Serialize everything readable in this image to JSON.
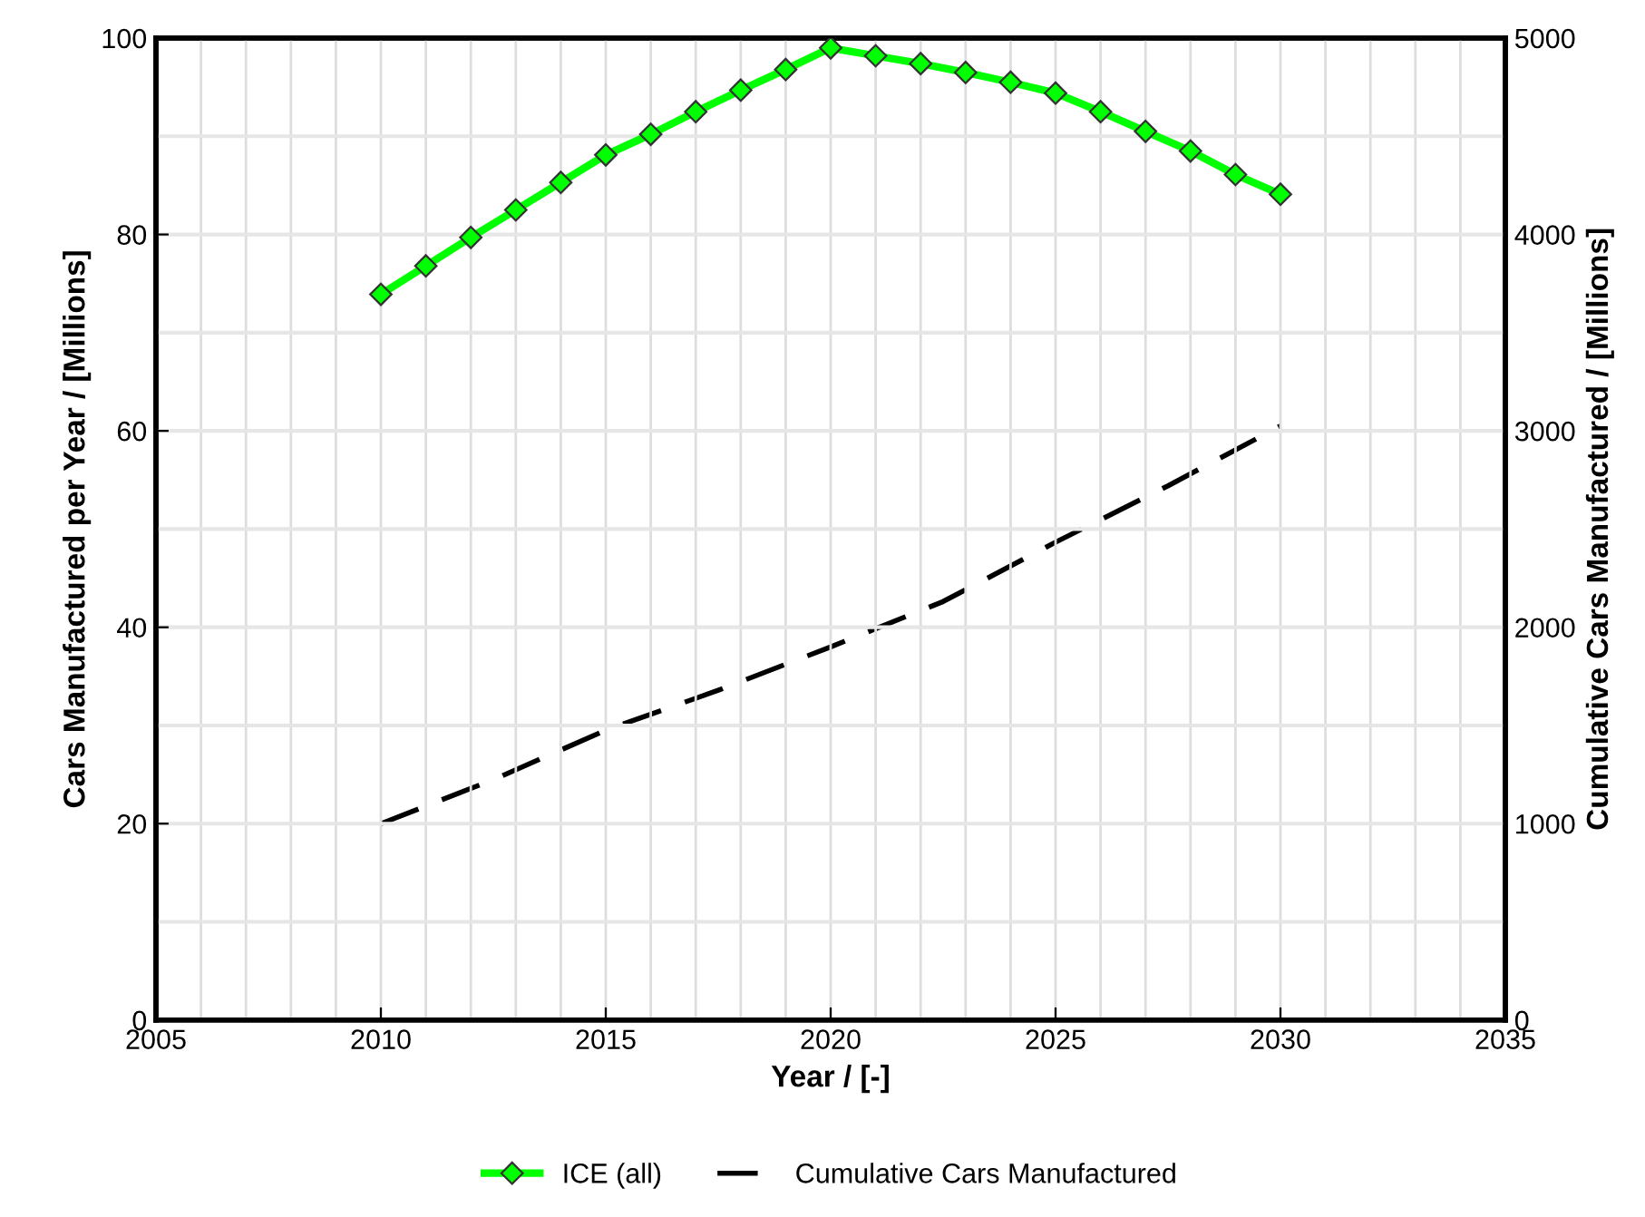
{
  "chart_data": {
    "type": "line",
    "xlabel": "Year / [-]",
    "ylabel": "Cars Manufactured per Year / [Millions]",
    "y2label": "Cumulative Cars Manufactured / [Millions]",
    "xlim": [
      2005,
      2035
    ],
    "xticks": [
      2005,
      2010,
      2015,
      2020,
      2025,
      2030,
      2035
    ],
    "ylim": [
      0,
      100
    ],
    "yticks": [
      0,
      20,
      40,
      60,
      80,
      100
    ],
    "y2lim": [
      0,
      5000
    ],
    "y2ticks": [
      0,
      1000,
      2000,
      3000,
      4000,
      5000
    ],
    "grid": true,
    "legend": "bottom",
    "series": [
      {
        "name": "ICE (all)",
        "color": "#00ff00",
        "marker": "diamond",
        "line_style": "solid",
        "x": [
          2010,
          2011,
          2012,
          2013,
          2014,
          2015,
          2016,
          2017,
          2018,
          2019,
          2020,
          2021,
          2022,
          2023,
          2024,
          2025,
          2026,
          2027,
          2028,
          2029,
          2030
        ],
        "values": [
          73.9,
          76.8,
          79.7,
          82.5,
          85.3,
          88.1,
          90.2,
          92.5,
          94.7,
          96.8,
          99.0,
          98.2,
          97.4,
          96.5,
          95.5,
          94.4,
          92.5,
          90.5,
          88.5,
          86.1,
          84.1
        ]
      },
      {
        "name": "Cumulative Cars Manufactured",
        "color": "#000000",
        "marker": "none",
        "line_style": "dashed",
        "axis": "y2",
        "x": [
          2010,
          2012.5,
          2015,
          2017.5,
          2020,
          2022.5,
          2025,
          2027.5,
          2030
        ],
        "values": [
          1000,
          1224,
          1476,
          1679,
          1900,
          2131,
          2433,
          2720,
          3025
        ]
      }
    ]
  }
}
